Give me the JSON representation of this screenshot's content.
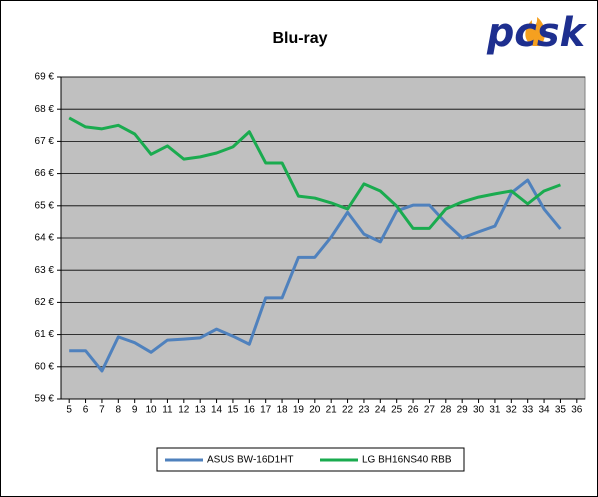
{
  "chart_data": {
    "type": "line",
    "title": "Blu-ray",
    "logo": "pcsk",
    "x": [
      5,
      6,
      7,
      8,
      9,
      10,
      11,
      12,
      13,
      14,
      15,
      16,
      17,
      18,
      19,
      20,
      21,
      22,
      23,
      24,
      25,
      26,
      27,
      28,
      29,
      30,
      31,
      32,
      33,
      34,
      35,
      36
    ],
    "xlim": [
      4.5,
      36.5
    ],
    "xticks": [
      5,
      6,
      7,
      8,
      9,
      10,
      11,
      12,
      13,
      14,
      15,
      16,
      17,
      18,
      19,
      20,
      21,
      22,
      23,
      24,
      25,
      26,
      27,
      28,
      29,
      30,
      31,
      32,
      33,
      34,
      35,
      36
    ],
    "ylim": [
      59,
      69
    ],
    "yticks": [
      {
        "value": 59,
        "label": "59 €"
      },
      {
        "value": 60,
        "label": "60 €"
      },
      {
        "value": 61,
        "label": "61 €"
      },
      {
        "value": 62,
        "label": "62 €"
      },
      {
        "value": 63,
        "label": "63 €"
      },
      {
        "value": 64,
        "label": "64 €"
      },
      {
        "value": 65,
        "label": "65 €"
      },
      {
        "value": 66,
        "label": "66 €"
      },
      {
        "value": 67,
        "label": "67 €"
      },
      {
        "value": 68,
        "label": "68 €"
      },
      {
        "value": 69,
        "label": "69 €"
      }
    ],
    "grid": true,
    "legend": "bottom",
    "series": [
      {
        "name": "ASUS BW-16D1HT",
        "color": "#4f81bd",
        "values": [
          60.5,
          60.5,
          59.87,
          60.93,
          60.75,
          60.45,
          60.83,
          60.86,
          60.9,
          61.17,
          60.95,
          60.7,
          62.14,
          62.14,
          63.4,
          63.4,
          64.03,
          64.8,
          64.12,
          63.88,
          64.84,
          65.02,
          65.02,
          64.47,
          64.0,
          64.19,
          64.37,
          65.4,
          65.8,
          64.9,
          64.28,
          null
        ]
      },
      {
        "name": "LG BH16NS40 RBB",
        "color": "#1aab4f",
        "values": [
          67.73,
          67.45,
          67.39,
          67.5,
          67.23,
          66.6,
          66.86,
          66.45,
          66.52,
          66.64,
          66.83,
          67.3,
          66.33,
          66.33,
          65.3,
          65.24,
          65.09,
          64.9,
          65.68,
          65.46,
          64.99,
          64.3,
          64.3,
          64.9,
          65.12,
          65.27,
          65.37,
          65.46,
          65.06,
          65.46,
          65.65,
          null
        ]
      }
    ]
  }
}
